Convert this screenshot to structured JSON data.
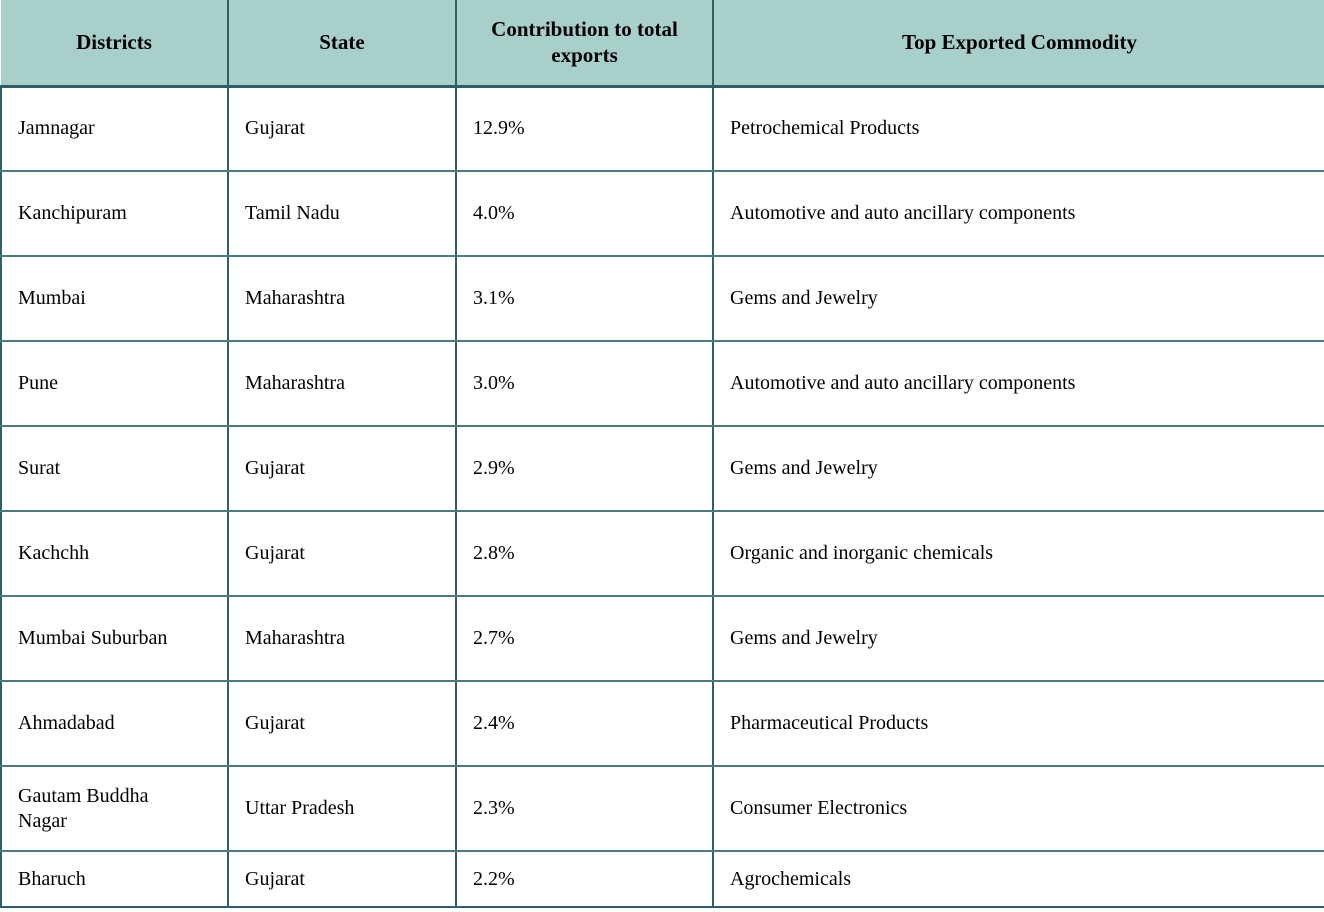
{
  "chart_data": {
    "type": "table",
    "columns": [
      "Districts",
      "State",
      "Contribution to total exports",
      "Top Exported Commodity"
    ],
    "rows": [
      [
        "Jamnagar",
        "Gujarat",
        "12.9%",
        "Petrochemical Products"
      ],
      [
        "Kanchipuram",
        "Tamil Nadu",
        "4.0%",
        "Automotive and auto ancillary components"
      ],
      [
        "Mumbai",
        "Maharashtra",
        "3.1%",
        "Gems and Jewelry"
      ],
      [
        "Pune",
        "Maharashtra",
        "3.0%",
        "Automotive and auto ancillary components"
      ],
      [
        "Surat",
        "Gujarat",
        "2.9%",
        "Gems and Jewelry"
      ],
      [
        "Kachchh",
        "Gujarat",
        "2.8%",
        "Organic and inorganic chemicals"
      ],
      [
        "Mumbai Suburban",
        "Maharashtra",
        "2.7%",
        "Gems and Jewelry"
      ],
      [
        "Ahmadabad",
        "Gujarat",
        "2.4%",
        "Pharmaceutical Products"
      ],
      [
        "Gautam Buddha Nagar",
        "Uttar Pradesh",
        "2.3%",
        "Consumer Electronics"
      ],
      [
        "Bharuch",
        "Gujarat",
        "2.2%",
        "Agrochemicals"
      ]
    ]
  },
  "colors": {
    "header_bg": "#a8cfc9",
    "border_dark": "#2d5f64",
    "border_row": "#4e7a7c",
    "text": "#000000"
  }
}
